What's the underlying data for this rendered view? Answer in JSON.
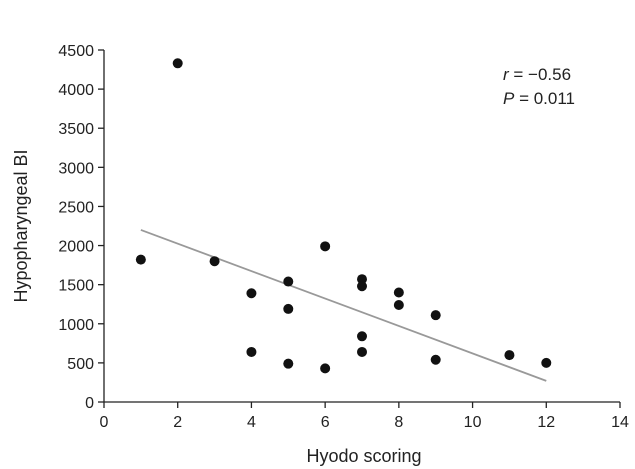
{
  "chart_data": {
    "type": "scatter",
    "xlabel": "Hyodo scoring",
    "ylabel": "Hypopharyngeal BI",
    "xlim": [
      0,
      14
    ],
    "ylim": [
      0,
      4500
    ],
    "xticks": [
      0,
      2,
      4,
      6,
      8,
      10,
      12,
      14
    ],
    "yticks": [
      0,
      500,
      1000,
      1500,
      2000,
      2500,
      3000,
      3500,
      4000,
      4500
    ],
    "grid": false,
    "points": [
      {
        "x": 1,
        "y": 1820
      },
      {
        "x": 2,
        "y": 4330
      },
      {
        "x": 3,
        "y": 1800
      },
      {
        "x": 4,
        "y": 1390
      },
      {
        "x": 4,
        "y": 640
      },
      {
        "x": 5,
        "y": 1540
      },
      {
        "x": 5,
        "y": 1190
      },
      {
        "x": 5,
        "y": 490
      },
      {
        "x": 6,
        "y": 1990
      },
      {
        "x": 6,
        "y": 430
      },
      {
        "x": 7,
        "y": 1570
      },
      {
        "x": 7,
        "y": 1480
      },
      {
        "x": 7,
        "y": 840
      },
      {
        "x": 7,
        "y": 640
      },
      {
        "x": 8,
        "y": 1400
      },
      {
        "x": 8,
        "y": 1240
      },
      {
        "x": 9,
        "y": 1110
      },
      {
        "x": 9,
        "y": 540
      },
      {
        "x": 11,
        "y": 600
      },
      {
        "x": 12,
        "y": 500
      }
    ],
    "trendline": {
      "x": [
        1,
        12
      ],
      "y": [
        2200,
        270
      ],
      "color": "#999999"
    },
    "point_color": "#111111",
    "annotation": {
      "r_symbol": "r",
      "r_value": " = −0.56",
      "p_symbol": "P",
      "p_value": " = 0.011"
    }
  }
}
